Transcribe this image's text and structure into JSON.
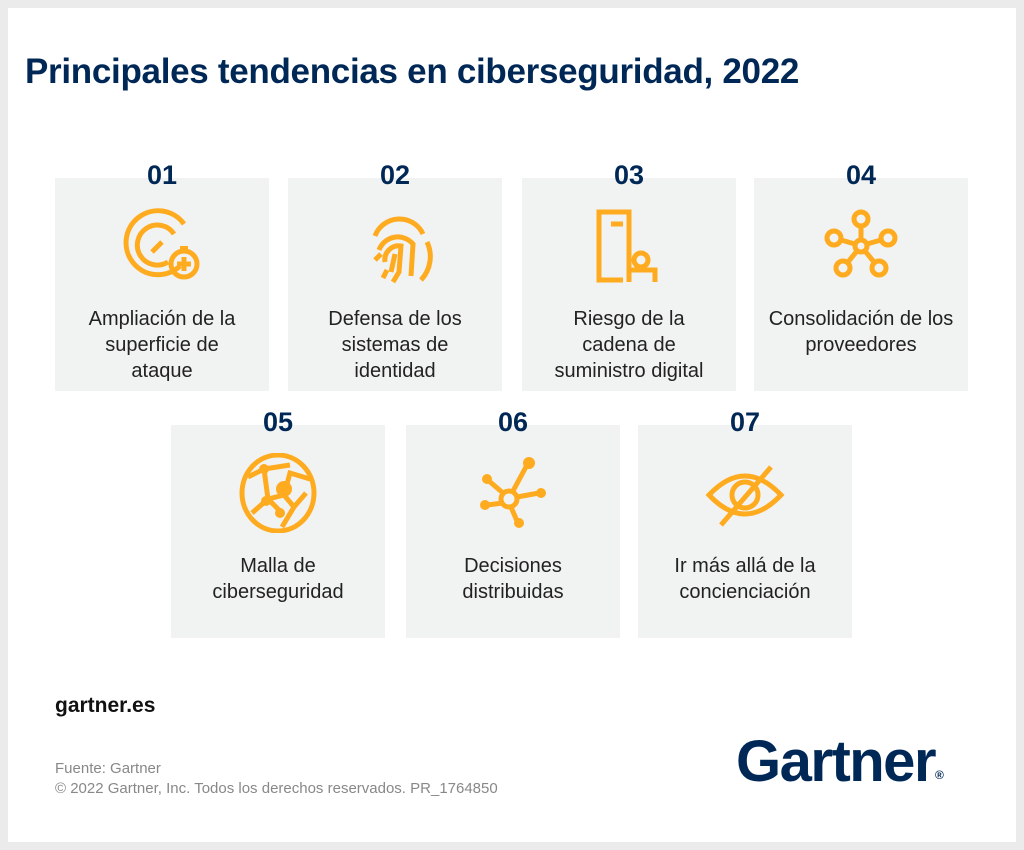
{
  "title": "Principales tendencias en ciberseguridad, 2022",
  "accent_color": "#ffab1f",
  "brand_color": "#002856",
  "trends": [
    {
      "number": "01",
      "label": "Ampliación de la superficie de ataque",
      "icon": "target-plus-icon"
    },
    {
      "number": "02",
      "label": "Defensa de los sistemas de identidad",
      "icon": "fingerprint-icon"
    },
    {
      "number": "03",
      "label": "Riesgo de la cadena de suministro digital",
      "icon": "door-person-icon"
    },
    {
      "number": "04",
      "label": "Consolidación de los proveedores",
      "icon": "hub-network-icon"
    },
    {
      "number": "05",
      "label": "Malla de ciberseguridad",
      "icon": "mesh-globe-icon"
    },
    {
      "number": "06",
      "label": "Decisiones distribuidas",
      "icon": "distributed-nodes-icon"
    },
    {
      "number": "07",
      "label": "Ir más allá de la concienciación",
      "icon": "eye-slash-icon"
    }
  ],
  "footer": {
    "site": "gartner.es",
    "source": "Fuente: Gartner",
    "copyright": "© 2022 Gartner, Inc. Todos los derechos reservados. PR_1764850",
    "logo": "Gartner"
  }
}
